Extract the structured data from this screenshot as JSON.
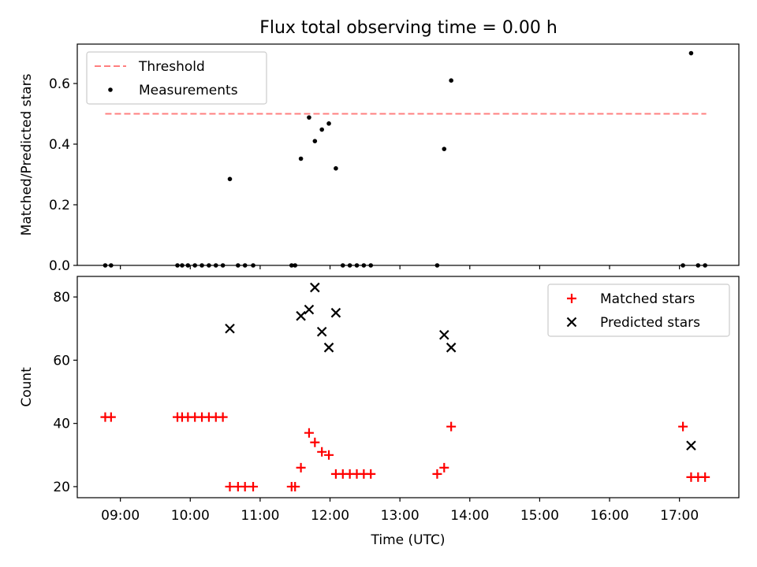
{
  "figure": {
    "title": "Flux total observing time = 0.00 h",
    "colors": {
      "threshold": "#ff7f7f",
      "measurement": "#000000",
      "matched": "#ff0000",
      "predicted": "#000000"
    }
  },
  "chart_data": [
    {
      "type": "scatter",
      "ylabel": "Matched/Predicted stars",
      "xlabel": "",
      "xlim": [
        "08:23",
        "17:51"
      ],
      "ylim": [
        0,
        0.73
      ],
      "yticks": [
        0.0,
        0.2,
        0.4,
        0.6
      ],
      "ytick_labels": [
        "0.0",
        "0.2",
        "0.4",
        "0.6"
      ],
      "xticks": [
        "09:00",
        "10:00",
        "11:00",
        "12:00",
        "13:00",
        "14:00",
        "15:00",
        "16:00",
        "17:00"
      ],
      "show_xtick_labels": false,
      "grid": false,
      "legend": {
        "placement": "upper-left",
        "entries": [
          "Threshold",
          "Measurements"
        ]
      },
      "threshold": {
        "name": "Threshold",
        "y": 0.5,
        "x_range": [
          "08:47",
          "17:23"
        ],
        "style": "dashed"
      },
      "series": [
        {
          "name": "Measurements",
          "marker": "dot",
          "x": [
            "08:47",
            "08:52",
            "09:49",
            "09:53",
            "09:58",
            "10:04",
            "10:10",
            "10:16",
            "10:22",
            "10:28",
            "10:34",
            "10:41",
            "10:47",
            "10:54",
            "11:27",
            "11:30",
            "11:35",
            "11:42",
            "11:47",
            "11:53",
            "11:59",
            "12:05",
            "12:11",
            "12:17",
            "12:23",
            "12:29",
            "12:35",
            "13:32",
            "13:38",
            "13:44",
            "17:03",
            "17:10",
            "17:16",
            "17:22"
          ],
          "y": [
            0,
            0,
            0,
            0,
            0,
            0,
            0,
            0,
            0,
            0,
            0.285,
            0,
            0,
            0,
            0,
            0,
            0.352,
            0.488,
            0.41,
            0.448,
            0.468,
            0.32,
            0,
            0,
            0,
            0,
            0,
            0,
            0.384,
            0.61,
            0,
            0.7,
            0,
            0
          ]
        }
      ]
    },
    {
      "type": "scatter",
      "ylabel": "Count",
      "xlabel": "Time (UTC)",
      "xlim": [
        "08:23",
        "17:51"
      ],
      "ylim": [
        16.5,
        86.5
      ],
      "yticks": [
        20,
        40,
        60,
        80
      ],
      "ytick_labels": [
        "20",
        "40",
        "60",
        "80"
      ],
      "xticks": [
        "09:00",
        "10:00",
        "11:00",
        "12:00",
        "13:00",
        "14:00",
        "15:00",
        "16:00",
        "17:00"
      ],
      "show_xtick_labels": true,
      "grid": false,
      "legend": {
        "placement": "upper-right",
        "entries": [
          "Matched stars",
          "Predicted stars"
        ]
      },
      "series": [
        {
          "name": "Matched stars",
          "marker": "plus",
          "x": [
            "08:47",
            "08:52",
            "09:49",
            "09:53",
            "09:58",
            "10:04",
            "10:10",
            "10:16",
            "10:22",
            "10:28",
            "10:34",
            "10:41",
            "10:47",
            "10:54",
            "11:27",
            "11:30",
            "11:35",
            "11:42",
            "11:47",
            "11:53",
            "11:59",
            "12:05",
            "12:11",
            "12:17",
            "12:23",
            "12:29",
            "12:35",
            "13:32",
            "13:38",
            "13:44",
            "17:03",
            "17:10",
            "17:16",
            "17:22"
          ],
          "y": [
            42,
            42,
            42,
            42,
            42,
            42,
            42,
            42,
            42,
            42,
            20,
            20,
            20,
            20,
            20,
            20,
            26,
            37,
            34,
            31,
            30,
            24,
            24,
            24,
            24,
            24,
            24,
            24,
            26,
            39,
            39,
            23,
            23,
            23
          ]
        },
        {
          "name": "Predicted stars",
          "marker": "x",
          "x": [
            "10:34",
            "11:35",
            "11:42",
            "11:47",
            "11:53",
            "11:59",
            "12:05",
            "13:38",
            "13:44",
            "17:10"
          ],
          "y": [
            70,
            74,
            76,
            83,
            69,
            64,
            75,
            68,
            64,
            33
          ]
        }
      ]
    }
  ]
}
